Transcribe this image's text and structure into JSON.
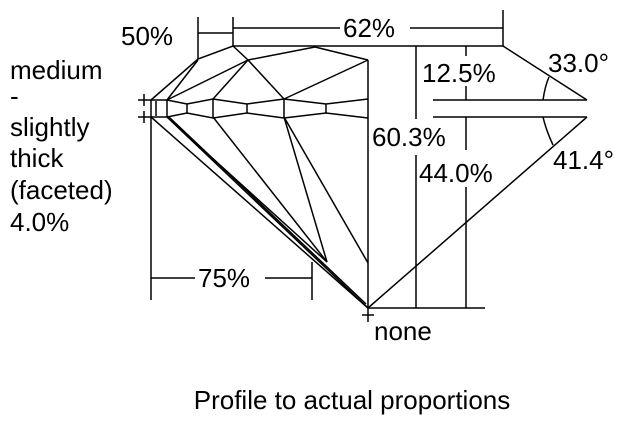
{
  "labels": {
    "star_length": "50%",
    "table": "62%",
    "crown_height": "12.5%",
    "crown_angle": "33.0°",
    "total_depth": "60.3%",
    "pavilion_depth": "44.0%",
    "pavilion_angle": "41.4°",
    "lower_half": "75%",
    "culet": "none",
    "girdle": [
      "medium",
      "-",
      "slightly",
      "thick",
      "(faceted)",
      "4.0%"
    ]
  },
  "caption": "Profile to actual proportions"
}
